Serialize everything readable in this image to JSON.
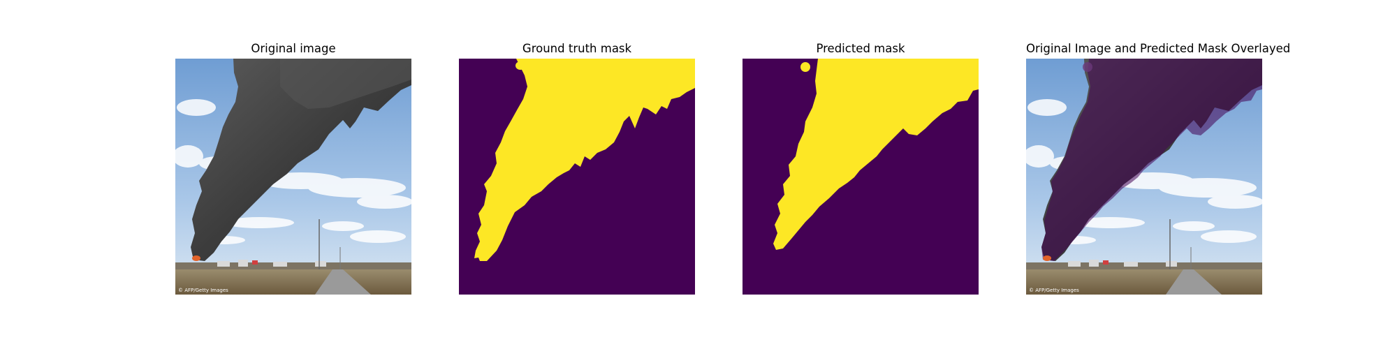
{
  "figure": {
    "panels": [
      {
        "title": "Original image"
      },
      {
        "title": "Ground truth mask"
      },
      {
        "title": "Predicted mask"
      },
      {
        "title": "Original Image and Predicted Mask Overlayed"
      }
    ],
    "photo_credit": "© AFP/Getty Images",
    "colors": {
      "mask_background": "#440154",
      "mask_foreground": "#fde725",
      "sky_top": "#7fa7d6",
      "sky_bottom": "#c8dcef",
      "smoke": "#3a3a3a",
      "ground": "#8b7a5a"
    }
  }
}
